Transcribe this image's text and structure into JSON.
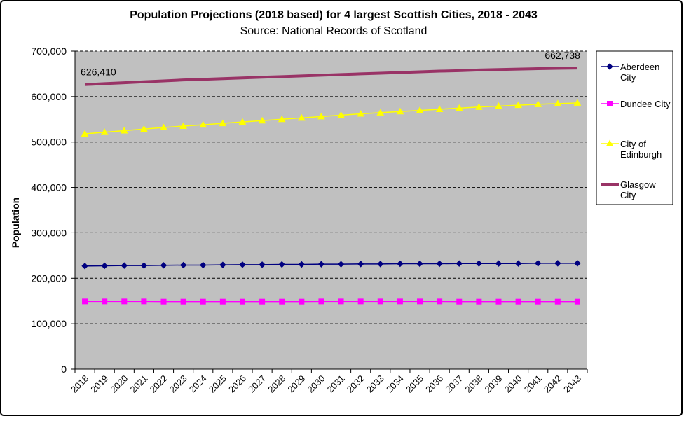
{
  "chart_data": {
    "type": "line",
    "title": "Population Projections (2018 based) for 4 largest Scottish Cities, 2018 - 2043",
    "subtitle": "Source: National Records of Scotland",
    "y_label": "Population",
    "categories": [
      "2018",
      "2019",
      "2020",
      "2021",
      "2022",
      "2023",
      "2024",
      "2025",
      "2026",
      "2027",
      "2028",
      "2029",
      "2030",
      "2031",
      "2032",
      "2033",
      "2034",
      "2035",
      "2036",
      "2037",
      "2038",
      "2039",
      "2040",
      "2041",
      "2042",
      "2043"
    ],
    "ylim": [
      0,
      700000
    ],
    "yticks": [
      0,
      {
        "value": 100000,
        "label": "100,000"
      },
      {
        "value": 200000,
        "label": "200,000"
      },
      {
        "value": 300000,
        "label": "300,000"
      },
      {
        "value": 400000,
        "label": "400,000"
      },
      {
        "value": 500000,
        "label": "500,000"
      },
      {
        "value": 600000,
        "label": "600,000"
      },
      {
        "value": 700000,
        "label": "700,000"
      }
    ],
    "grid": true,
    "plot_background": "#c0c0c0",
    "legend": "right",
    "series": [
      {
        "name": "Aberdeen City",
        "color": "#000080",
        "marker": "diamond",
        "values": [
          227000,
          227500,
          228000,
          228000,
          228500,
          229000,
          229000,
          229500,
          230000,
          230000,
          230500,
          230500,
          231000,
          231000,
          231500,
          231500,
          232000,
          232000,
          232000,
          232500,
          232500,
          232500,
          232500,
          233000,
          233000,
          233000
        ]
      },
      {
        "name": "Dundee City",
        "color": "#ff00ff",
        "marker": "square",
        "values": [
          149000,
          149000,
          149000,
          149000,
          148500,
          148500,
          148500,
          148500,
          148500,
          148500,
          148500,
          148500,
          149000,
          149000,
          149000,
          149000,
          149000,
          149000,
          149000,
          148500,
          148500,
          148500,
          148500,
          148500,
          148500,
          148500
        ]
      },
      {
        "name": "City of Edinburgh",
        "color": "#ffff00",
        "marker": "triangle",
        "values": [
          518000,
          521500,
          525000,
          528500,
          532000,
          535000,
          538000,
          541000,
          544000,
          547000,
          550000,
          553000,
          556000,
          559000,
          562000,
          564500,
          567000,
          569500,
          572000,
          574500,
          577000,
          579000,
          581000,
          583000,
          584500,
          586000
        ]
      },
      {
        "name": "Glasgow City",
        "color": "#993366",
        "values": [
          626410,
          628500,
          630500,
          632500,
          634500,
          636500,
          638000,
          639500,
          641000,
          642500,
          644000,
          645500,
          647000,
          648500,
          650000,
          651500,
          653000,
          654500,
          656000,
          657000,
          658500,
          659500,
          660500,
          661500,
          662200,
          662738
        ],
        "value_labels": [
          "626,410",
          null,
          null,
          null,
          null,
          null,
          null,
          null,
          null,
          null,
          null,
          null,
          null,
          null,
          null,
          null,
          null,
          null,
          null,
          null,
          null,
          null,
          null,
          null,
          null,
          "662,738"
        ]
      }
    ]
  }
}
